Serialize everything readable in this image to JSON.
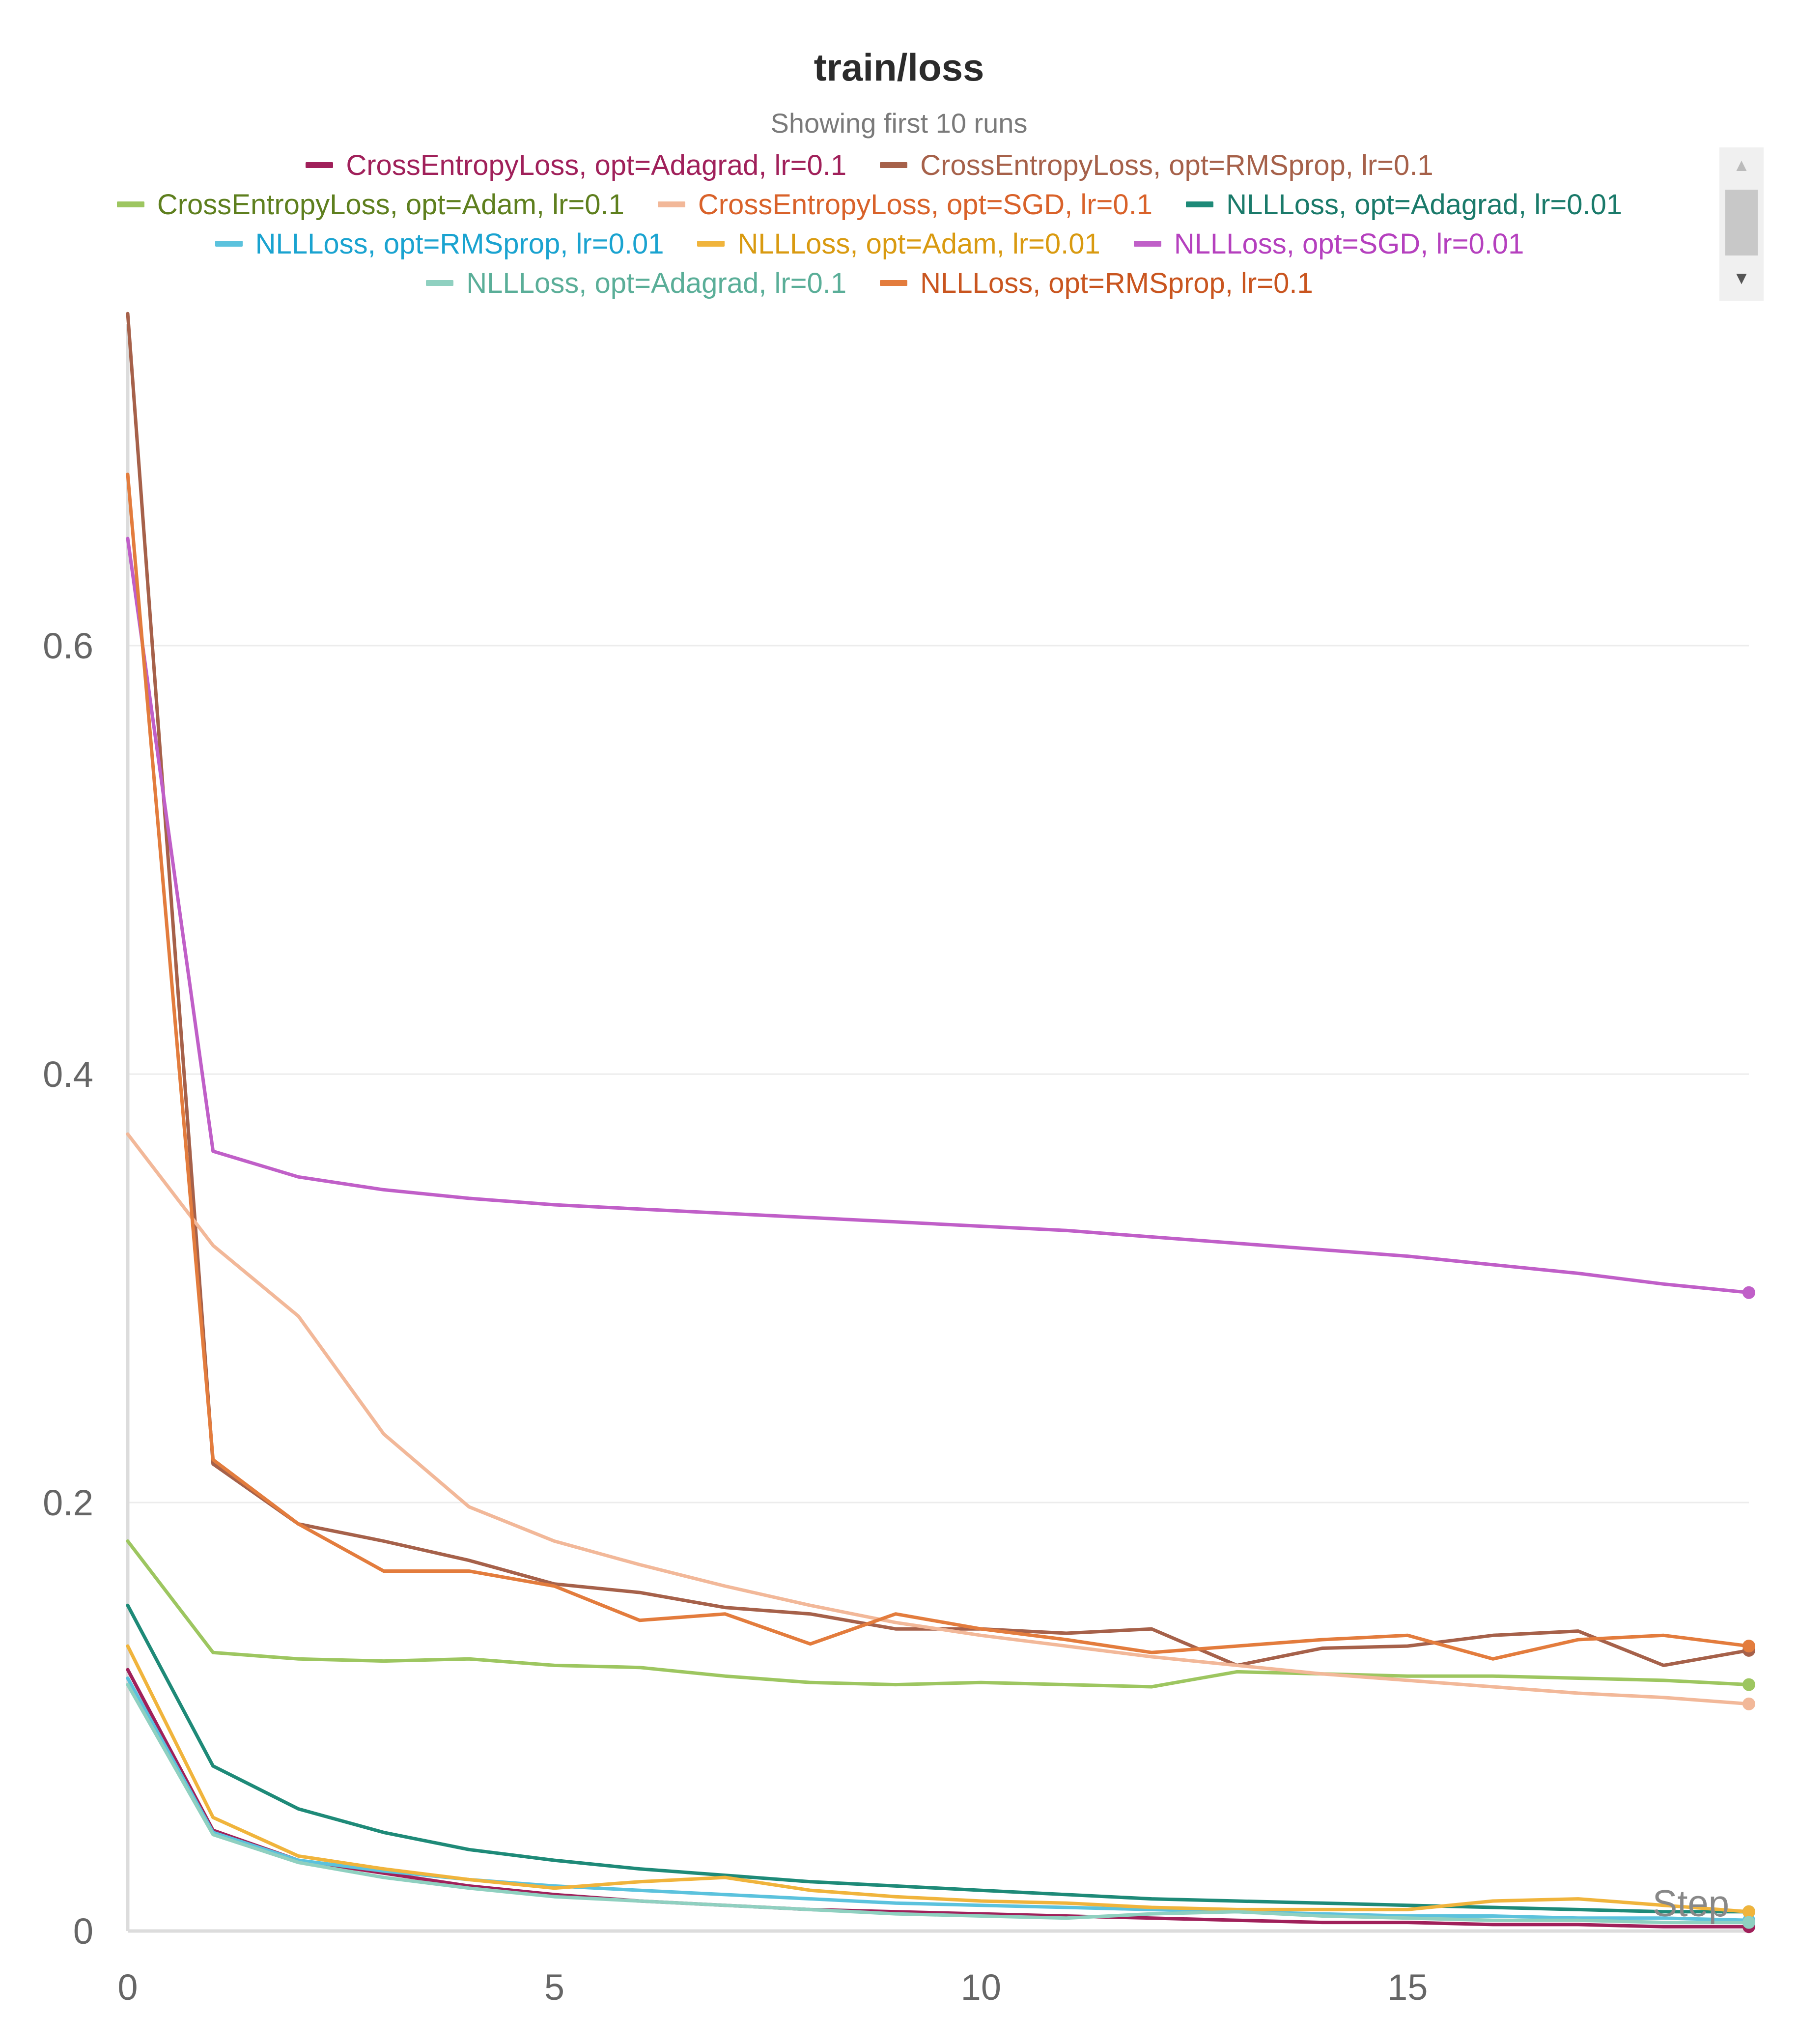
{
  "chart_data": {
    "type": "line",
    "title": "train/loss",
    "subtitle": "Showing first 10 runs",
    "xlabel": "Step",
    "ylabel": "",
    "xlim": [
      0,
      19
    ],
    "ylim": [
      0,
      0.75
    ],
    "x_ticks": [
      0,
      5,
      10,
      15
    ],
    "y_ticks": [
      0,
      0.2,
      0.4,
      0.6
    ],
    "y_tick_labels": [
      "0",
      "0.2",
      "0.4",
      "0.6"
    ],
    "grid": true,
    "legend_position": "top",
    "x": [
      0,
      1,
      2,
      3,
      4,
      5,
      6,
      7,
      8,
      9,
      10,
      11,
      12,
      13,
      14,
      15,
      16,
      17,
      18,
      19
    ],
    "series": [
      {
        "name": "CrossEntropyLoss, opt=Adagrad, lr=0.1",
        "color": "#a0205a",
        "values": [
          0.122,
          0.047,
          0.033,
          0.027,
          0.021,
          0.017,
          0.014,
          0.012,
          0.01,
          0.009,
          0.008,
          0.007,
          0.006,
          0.005,
          0.004,
          0.004,
          0.003,
          0.003,
          0.002,
          0.002
        ]
      },
      {
        "name": "CrossEntropyLoss, opt=RMSprop, lr=0.1",
        "color": "#a6614a",
        "values": [
          0.755,
          0.218,
          0.19,
          0.182,
          0.173,
          0.162,
          0.158,
          0.151,
          0.148,
          0.141,
          0.141,
          0.139,
          0.141,
          0.124,
          0.132,
          0.133,
          0.138,
          0.14,
          0.124,
          0.131
        ]
      },
      {
        "name": "CrossEntropyLoss, opt=Adam, lr=0.1",
        "color": "#9dc660",
        "values": [
          0.182,
          0.13,
          0.127,
          0.126,
          0.127,
          0.124,
          0.123,
          0.119,
          0.116,
          0.115,
          0.116,
          0.115,
          0.114,
          0.121,
          0.12,
          0.119,
          0.119,
          0.118,
          0.117,
          0.115
        ]
      },
      {
        "name": "CrossEntropyLoss, opt=SGD, lr=0.1",
        "color": "#f2b899",
        "values": [
          0.372,
          0.32,
          0.287,
          0.232,
          0.198,
          0.182,
          0.171,
          0.161,
          0.152,
          0.144,
          0.138,
          0.133,
          0.128,
          0.124,
          0.12,
          0.117,
          0.114,
          0.111,
          0.109,
          0.106
        ]
      },
      {
        "name": "NLLLoss, opt=Adagrad, lr=0.01",
        "color": "#1e8a78",
        "values": [
          0.152,
          0.077,
          0.057,
          0.046,
          0.038,
          0.033,
          0.029,
          0.026,
          0.023,
          0.021,
          0.019,
          0.017,
          0.015,
          0.014,
          0.013,
          0.012,
          0.011,
          0.01,
          0.009,
          0.009
        ]
      },
      {
        "name": "NLLLoss, opt=RMSprop, lr=0.01",
        "color": "#5bc2dd",
        "values": [
          0.118,
          0.046,
          0.033,
          0.028,
          0.024,
          0.021,
          0.019,
          0.017,
          0.015,
          0.013,
          0.012,
          0.011,
          0.01,
          0.009,
          0.008,
          0.007,
          0.007,
          0.006,
          0.006,
          0.005
        ]
      },
      {
        "name": "NLLLoss, opt=Adam, lr=0.01",
        "color": "#f0b43c",
        "values": [
          0.133,
          0.053,
          0.035,
          0.029,
          0.024,
          0.02,
          0.023,
          0.025,
          0.019,
          0.016,
          0.014,
          0.013,
          0.011,
          0.01,
          0.01,
          0.01,
          0.014,
          0.015,
          0.012,
          0.009
        ]
      },
      {
        "name": "NLLLoss, opt=SGD, lr=0.01",
        "color": "#c05fc8",
        "values": [
          0.65,
          0.364,
          0.352,
          0.346,
          0.342,
          0.339,
          0.337,
          0.335,
          0.333,
          0.331,
          0.329,
          0.327,
          0.324,
          0.321,
          0.318,
          0.315,
          0.311,
          0.307,
          0.302,
          0.298
        ]
      },
      {
        "name": "NLLLoss, opt=Adagrad, lr=0.1",
        "color": "#8fd0c0",
        "values": [
          0.115,
          0.045,
          0.032,
          0.025,
          0.02,
          0.016,
          0.014,
          0.012,
          0.01,
          0.008,
          0.007,
          0.006,
          0.008,
          0.009,
          0.007,
          0.006,
          0.005,
          0.005,
          0.004,
          0.004
        ]
      },
      {
        "name": "NLLLoss, opt=RMSprop, lr=0.1",
        "color": "#e37c3d",
        "values": [
          0.68,
          0.22,
          0.19,
          0.168,
          0.168,
          0.161,
          0.145,
          0.148,
          0.134,
          0.148,
          0.141,
          0.136,
          0.13,
          0.133,
          0.136,
          0.138,
          0.127,
          0.136,
          0.138,
          0.133
        ]
      }
    ]
  },
  "legend": {
    "rows": [
      [
        0,
        1
      ],
      [
        2,
        3,
        4
      ],
      [
        5,
        6,
        7
      ],
      [
        8,
        9
      ]
    ],
    "text_colors": [
      "#a0205a",
      "#a6614a",
      "#5e7f1e",
      "#d9622a",
      "#1a7a6a",
      "#1aa3d0",
      "#d99a10",
      "#b540be",
      "#5aae98",
      "#c9551f"
    ]
  },
  "scrollbar": {
    "up_icon": "triangle-up-icon",
    "down_icon": "triangle-down-icon",
    "up_glyph": "▲",
    "down_glyph": "▼"
  }
}
